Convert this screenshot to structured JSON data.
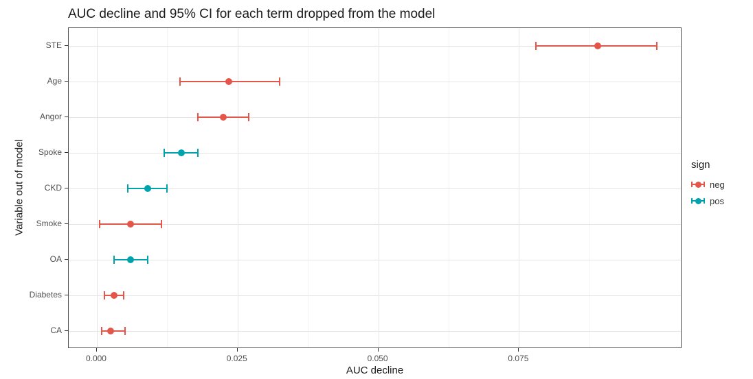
{
  "chart_data": {
    "type": "scatter",
    "subtype": "horizontal-errorbar",
    "title": "AUC decline and 95% CI for each term dropped from the model",
    "xlabel": "AUC decline",
    "ylabel": "Variable out of model",
    "xlim": [
      -0.005,
      0.104
    ],
    "xticks": [
      0.0,
      0.025,
      0.05,
      0.075
    ],
    "xtick_labels": [
      "0.000",
      "0.025",
      "0.050",
      "0.075"
    ],
    "grid": true,
    "categories": [
      "STE",
      "Age",
      "Angor",
      "Spoke",
      "CKD",
      "Smoke",
      "OA",
      "Diabetes",
      "CA"
    ],
    "points": [
      {
        "variable": "STE",
        "sign": "neg",
        "estimate": 0.089,
        "ci_low": 0.078,
        "ci_high": 0.0995
      },
      {
        "variable": "Age",
        "sign": "neg",
        "estimate": 0.0235,
        "ci_low": 0.0148,
        "ci_high": 0.0325
      },
      {
        "variable": "Angor",
        "sign": "neg",
        "estimate": 0.0225,
        "ci_low": 0.018,
        "ci_high": 0.027
      },
      {
        "variable": "Spoke",
        "sign": "pos",
        "estimate": 0.015,
        "ci_low": 0.012,
        "ci_high": 0.018
      },
      {
        "variable": "CKD",
        "sign": "pos",
        "estimate": 0.009,
        "ci_low": 0.0055,
        "ci_high": 0.0125
      },
      {
        "variable": "Smoke",
        "sign": "neg",
        "estimate": 0.006,
        "ci_low": 0.0005,
        "ci_high": 0.0115
      },
      {
        "variable": "OA",
        "sign": "pos",
        "estimate": 0.006,
        "ci_low": 0.003,
        "ci_high": 0.009
      },
      {
        "variable": "Diabetes",
        "sign": "neg",
        "estimate": 0.003,
        "ci_low": 0.0013,
        "ci_high": 0.0048
      },
      {
        "variable": "CA",
        "sign": "neg",
        "estimate": 0.0025,
        "ci_low": 0.0008,
        "ci_high": 0.005
      }
    ],
    "colors": {
      "neg": "#e4564a",
      "pos": "#00a2ac"
    },
    "legend": {
      "title": "sign",
      "position": "right",
      "entries": [
        {
          "label": "neg",
          "sign": "neg",
          "color": "#e4564a"
        },
        {
          "label": "pos",
          "sign": "pos",
          "color": "#00a2ac"
        }
      ]
    }
  }
}
